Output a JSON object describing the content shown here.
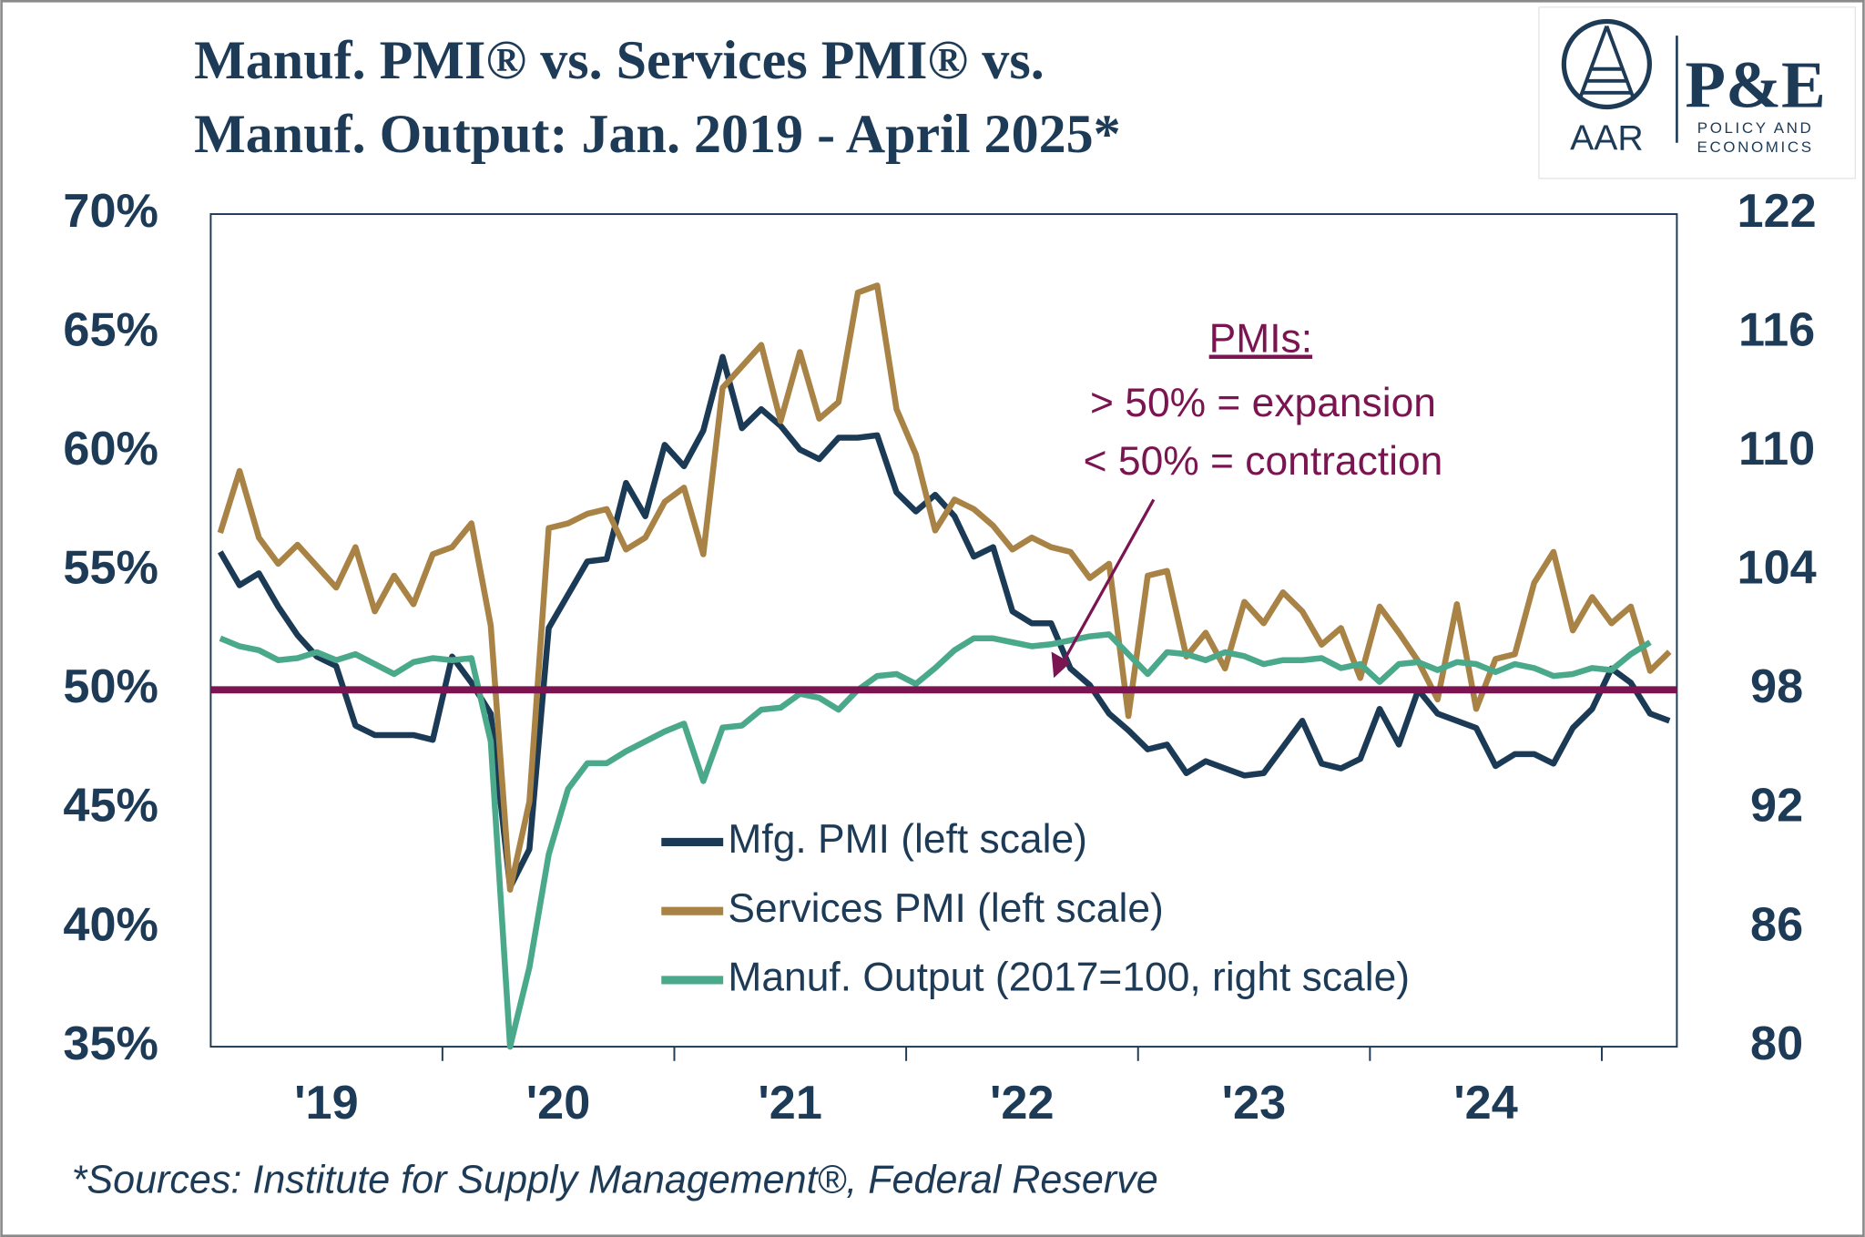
{
  "logo": {
    "left": "AAR",
    "mark": "P&E",
    "right_lines": [
      "POLICY AND",
      "ECONOMICS"
    ]
  },
  "chart_data": {
    "type": "line",
    "title": [
      "Manuf. PMI® vs. Services PMI® vs.",
      "Manuf. Output: Jan. 2019 - April 2025*"
    ],
    "source": "*Sources: Institute for Supply Management®, Federal Reserve",
    "annotation": {
      "heading": "PMIs:",
      "lines": [
        "> 50% = expansion",
        "< 50% = contraction"
      ],
      "color": "#7b1552"
    },
    "reference_line": {
      "value": 50,
      "color": "#7b1552"
    },
    "categories": [
      null,
      null,
      null,
      null,
      null,
      "'19",
      null,
      null,
      null,
      null,
      null,
      null,
      null,
      null,
      null,
      null,
      null,
      "'20",
      null,
      null,
      null,
      null,
      null,
      null,
      null,
      null,
      null,
      null,
      null,
      "'21",
      null,
      null,
      null,
      null,
      null,
      null,
      null,
      null,
      null,
      null,
      null,
      "'22",
      null,
      null,
      null,
      null,
      null,
      null,
      null,
      null,
      null,
      null,
      null,
      "'23",
      null,
      null,
      null,
      null,
      null,
      null,
      null,
      null,
      null,
      null,
      null,
      "'24",
      null,
      null,
      null,
      null,
      null,
      null,
      null,
      null,
      null,
      null
    ],
    "ylim": [
      35,
      70
    ],
    "yticks": [
      {
        "value": 35,
        "label": "35%"
      },
      {
        "value": 40,
        "label": "40%"
      },
      {
        "value": 45,
        "label": "45%"
      },
      {
        "value": 50,
        "label": "50%"
      },
      {
        "value": 55,
        "label": "55%"
      },
      {
        "value": 60,
        "label": "60%"
      },
      {
        "value": 65,
        "label": "65%"
      },
      {
        "value": 70,
        "label": "70%"
      }
    ],
    "y2lim": [
      80,
      122
    ],
    "y2ticks": [
      80,
      86,
      92,
      98,
      104,
      110,
      116,
      122
    ],
    "series": [
      {
        "name": "Mfg. PMI (left scale)",
        "color": "#1b3a55",
        "values": [
          55.8,
          54.4,
          54.9,
          53.5,
          52.3,
          51.4,
          51.0,
          48.5,
          48.1,
          48.1,
          48.1,
          47.9,
          51.4,
          50.3,
          49.0,
          41.7,
          43.3,
          52.6,
          54.0,
          55.4,
          55.5,
          58.7,
          57.3,
          60.3,
          59.4,
          60.9,
          64.0,
          61.0,
          61.8,
          61.1,
          60.1,
          59.7,
          60.6,
          60.6,
          60.7,
          58.3,
          57.5,
          58.2,
          57.3,
          55.6,
          56.0,
          53.3,
          52.8,
          52.8,
          50.9,
          50.2,
          49.0,
          48.3,
          47.5,
          47.7,
          46.5,
          47.0,
          46.7,
          46.4,
          46.5,
          47.6,
          48.7,
          46.9,
          46.7,
          47.1,
          49.2,
          47.7,
          50.0,
          49.0,
          48.7,
          48.4,
          46.8,
          47.3,
          47.3,
          46.9,
          48.4,
          49.2,
          50.9,
          50.3,
          49.0,
          48.7
        ]
      },
      {
        "name": "Services PMI (left scale)",
        "color": "#a98345",
        "values": [
          56.6,
          59.2,
          56.4,
          55.3,
          56.1,
          55.2,
          54.3,
          56.0,
          53.3,
          54.8,
          53.6,
          55.7,
          56.0,
          57.0,
          52.7,
          41.6,
          45.3,
          56.8,
          57.0,
          57.4,
          57.6,
          55.9,
          56.4,
          57.9,
          58.5,
          55.7,
          62.7,
          63.6,
          64.5,
          61.3,
          64.2,
          61.4,
          62.1,
          66.7,
          67.0,
          61.8,
          59.9,
          56.7,
          58.0,
          57.6,
          56.9,
          55.9,
          56.4,
          56.0,
          55.8,
          54.7,
          55.3,
          48.9,
          54.8,
          55.0,
          51.4,
          52.4,
          50.9,
          53.7,
          52.8,
          54.1,
          53.3,
          51.9,
          52.6,
          50.5,
          53.5,
          52.4,
          51.2,
          49.6,
          53.6,
          49.2,
          51.3,
          51.5,
          54.5,
          55.8,
          52.5,
          53.9,
          52.8,
          53.5,
          50.8,
          51.6
        ]
      },
      {
        "name": "Manuf. Output (2017=100, right scale)",
        "color": "#4aa98a",
        "axis": "y2",
        "values": [
          100.6,
          100.2,
          100.0,
          99.5,
          99.6,
          99.9,
          99.5,
          99.8,
          99.3,
          98.8,
          99.4,
          99.6,
          99.5,
          99.6,
          95.4,
          80.0,
          84.0,
          89.7,
          93.0,
          94.3,
          94.3,
          94.9,
          95.4,
          95.9,
          96.3,
          93.4,
          96.1,
          96.2,
          97.0,
          97.1,
          97.8,
          97.6,
          97.0,
          98.0,
          98.7,
          98.8,
          98.3,
          99.1,
          100.0,
          100.6,
          100.6,
          100.4,
          100.2,
          100.3,
          100.5,
          100.7,
          100.8,
          99.8,
          98.8,
          99.9,
          99.8,
          99.5,
          99.9,
          99.7,
          99.3,
          99.5,
          99.5,
          99.6,
          99.1,
          99.3,
          98.4,
          99.3,
          99.4,
          99.0,
          99.4,
          99.3,
          98.9,
          99.3,
          99.1,
          98.7,
          98.8,
          99.1,
          99.0,
          99.8,
          100.4,
          null
        ]
      }
    ]
  }
}
